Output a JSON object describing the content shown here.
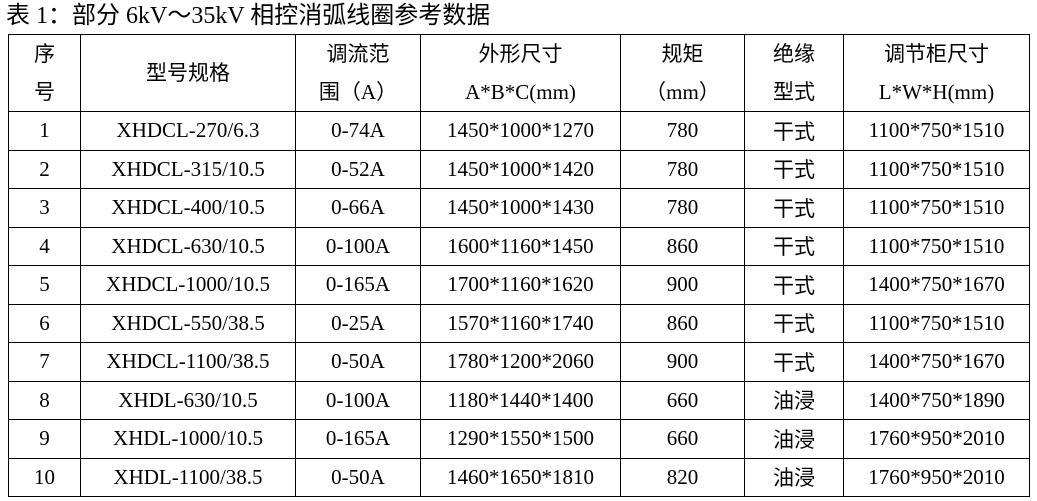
{
  "title": "表 1：部分 6kV～35kV 相控消弧线圈参考数据",
  "headers": [
    [
      "序",
      "号"
    ],
    [
      "型号规格"
    ],
    [
      "调流范",
      "围（A）"
    ],
    [
      "外形尺寸",
      "A*B*C(mm)"
    ],
    [
      "规矩",
      "（mm）"
    ],
    [
      "绝缘",
      "型式"
    ],
    [
      "调节柜尺寸",
      "L*W*H(mm)"
    ]
  ],
  "rows": [
    [
      "1",
      "XHDCL-270/6.3",
      "0-74A",
      "1450*1000*1270",
      "780",
      "干式",
      "1100*750*1510"
    ],
    [
      "2",
      "XHDCL-315/10.5",
      "0-52A",
      "1450*1000*1420",
      "780",
      "干式",
      "1100*750*1510"
    ],
    [
      "3",
      "XHDCL-400/10.5",
      "0-66A",
      "1450*1000*1430",
      "780",
      "干式",
      "1100*750*1510"
    ],
    [
      "4",
      "XHDCL-630/10.5",
      "0-100A",
      "1600*1160*1450",
      "860",
      "干式",
      "1100*750*1510"
    ],
    [
      "5",
      "XHDCL-1000/10.5",
      "0-165A",
      "1700*1160*1620",
      "900",
      "干式",
      "1400*750*1670"
    ],
    [
      "6",
      "XHDCL-550/38.5",
      "0-25A",
      "1570*1160*1740",
      "860",
      "干式",
      "1100*750*1510"
    ],
    [
      "7",
      "XHDCL-1100/38.5",
      "0-50A",
      "1780*1200*2060",
      "900",
      "干式",
      "1400*750*1670"
    ],
    [
      "8",
      "XHDL-630/10.5",
      "0-100A",
      "1180*1440*1400",
      "660",
      "油浸",
      "1400*750*1890"
    ],
    [
      "9",
      "XHDL-1000/10.5",
      "0-165A",
      "1290*1550*1500",
      "660",
      "油浸",
      "1760*950*2010"
    ],
    [
      "10",
      "XHDL-1100/38.5",
      "0-50A",
      "1460*1650*1810",
      "820",
      "油浸",
      "1760*950*2010"
    ]
  ]
}
